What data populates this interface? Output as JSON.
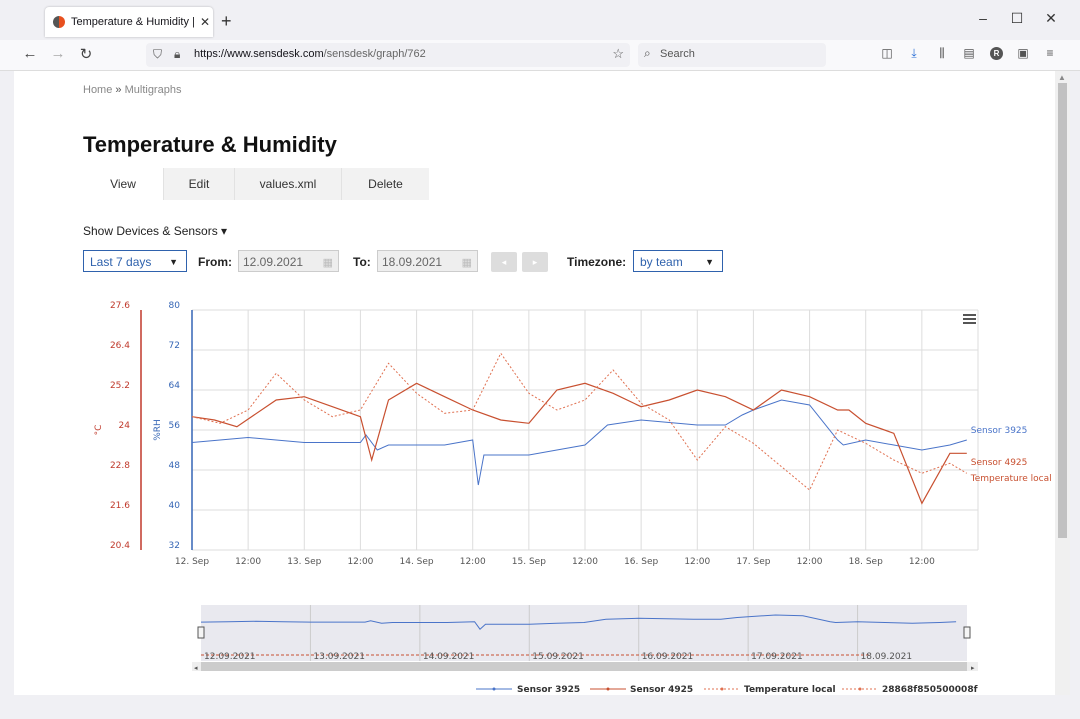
{
  "browser": {
    "tab_title": "Temperature & Humidity | Sens",
    "url_host": "https://www.sensdesk.com",
    "url_path": "/sensdesk/graph/762",
    "search_placeholder": "Search",
    "avatar_letter": "R"
  },
  "breadcrumb": {
    "home": "Home",
    "sep": "»",
    "current": "Multigraphs"
  },
  "page_title": "Temperature & Humidity",
  "tabs": [
    {
      "label": "View"
    },
    {
      "label": "Edit"
    },
    {
      "label": "values.xml"
    },
    {
      "label": "Delete"
    }
  ],
  "show_devices": "Show Devices & Sensors ▾",
  "controls": {
    "range": "Last 7 days",
    "from_label": "From:",
    "from_value": "12.09.2021",
    "to_label": "To:",
    "to_value": "18.09.2021",
    "prev": "◂",
    "next": "▸",
    "timezone_label": "Timezone:",
    "timezone_value": "by team"
  },
  "colors": {
    "series_blue": "#4a74c9",
    "series_red": "#c85030",
    "axis_red": "#c0392b",
    "axis_blue": "#3565b5"
  },
  "chart_data": {
    "type": "line",
    "title": "",
    "x_ticks": [
      "12. Sep",
      "12:00",
      "13. Sep",
      "12:00",
      "14. Sep",
      "12:00",
      "15. Sep",
      "12:00",
      "16. Sep",
      "12:00",
      "17. Sep",
      "12:00",
      "18. Sep",
      "12:00"
    ],
    "x_range": [
      0,
      7
    ],
    "y_left": {
      "unit": "°C",
      "ticks": [
        "27.6",
        "26.4",
        "25.2",
        "24",
        "22.8",
        "21.6",
        "20.4"
      ],
      "range": [
        20.4,
        27.6
      ]
    },
    "y_right": {
      "unit": "%RH",
      "ticks": [
        "80",
        "72",
        "64",
        "56",
        "48",
        "40",
        "32"
      ],
      "range": [
        32,
        80
      ]
    },
    "series": [
      {
        "name": "Sensor 3925",
        "axis": "%RH",
        "x": [
          0,
          0.25,
          0.5,
          0.75,
          1,
          1.25,
          1.5,
          1.55,
          1.65,
          1.75,
          2,
          2.25,
          2.5,
          2.55,
          2.6,
          2.8,
          3,
          3.25,
          3.5,
          3.7,
          4,
          4.25,
          4.5,
          4.75,
          4.9,
          5,
          5.25,
          5.5,
          5.75,
          5.8,
          6,
          6.25,
          6.5,
          6.75,
          6.9
        ],
        "values": [
          53.5,
          54,
          54.5,
          54,
          53.5,
          53.5,
          53.5,
          55,
          52,
          53,
          53,
          53,
          54,
          45,
          51,
          51,
          51,
          52,
          53,
          57,
          58,
          57.5,
          57,
          57,
          59,
          60,
          62,
          61,
          54,
          53,
          54,
          53,
          52,
          53,
          54
        ]
      },
      {
        "name": "Sensor 4925",
        "axis": "°C",
        "x": [
          0,
          0.2,
          0.4,
          0.75,
          1,
          1.25,
          1.5,
          1.6,
          1.75,
          2,
          2.25,
          2.5,
          2.75,
          3,
          3.25,
          3.5,
          3.75,
          4,
          4.25,
          4.5,
          4.75,
          5,
          5.25,
          5.5,
          5.75,
          5.85,
          6,
          6.25,
          6.5,
          6.75,
          6.9
        ],
        "values": [
          24.4,
          24.3,
          24.1,
          24.9,
          25.0,
          24.7,
          24.4,
          23.1,
          24.9,
          25.4,
          25.0,
          24.6,
          24.3,
          24.2,
          25.2,
          25.4,
          25.1,
          24.7,
          24.9,
          25.2,
          25.0,
          24.6,
          25.2,
          25.0,
          24.6,
          24.6,
          24.2,
          23.9,
          21.8,
          23.3,
          23.3
        ]
      },
      {
        "name": "Temperature local",
        "axis": "°C",
        "x": [
          0,
          0.25,
          0.5,
          0.75,
          1,
          1.25,
          1.5,
          1.75,
          2,
          2.25,
          2.5,
          2.75,
          3,
          3.25,
          3.5,
          3.75,
          4,
          4.25,
          4.5,
          4.75,
          5,
          5.25,
          5.5,
          5.75,
          6,
          6.25,
          6.5,
          6.75,
          6.9
        ],
        "values": [
          24.4,
          24.2,
          24.6,
          25.7,
          24.9,
          24.4,
          24.6,
          26.0,
          25.1,
          24.5,
          24.6,
          26.3,
          25.1,
          24.6,
          24.9,
          25.8,
          24.8,
          24.3,
          23.1,
          24.1,
          23.6,
          22.9,
          22.2,
          24.0,
          23.6,
          23.1,
          22.7,
          23.0,
          22.7
        ]
      },
      {
        "name": "28868f850500008f",
        "axis": "°C",
        "x": [],
        "values": []
      }
    ],
    "navigator": {
      "dates": [
        "12.09.2021",
        "13.09.2021",
        "14.09.2021",
        "15.09.2021",
        "16.09.2021",
        "17.09.2021",
        "18.09.2021"
      ]
    },
    "legend_position": "bottom-right",
    "grid": true
  }
}
